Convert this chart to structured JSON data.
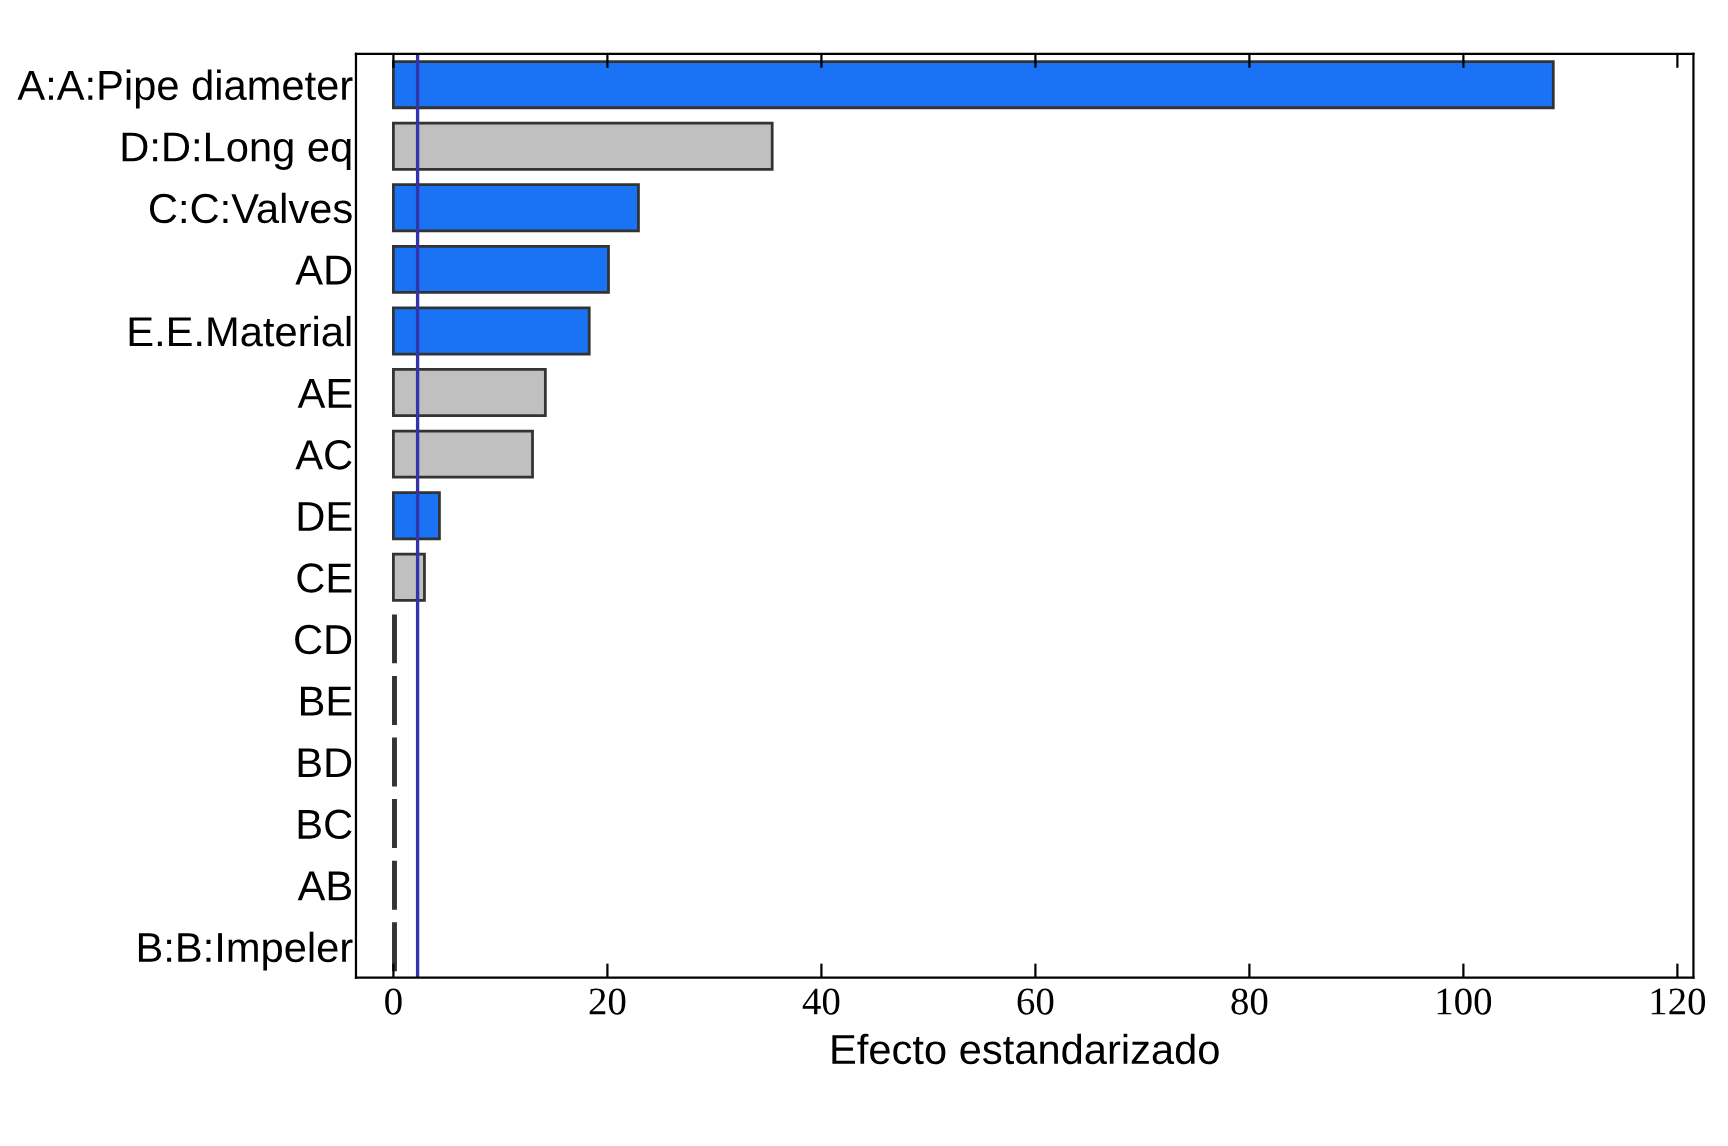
{
  "chart_data": {
    "type": "bar",
    "orientation": "horizontal",
    "xlabel": "Efecto estandarizado",
    "categories": [
      "A:A:Pipe diameter",
      "D:D:Long eq",
      "C:C:Valves",
      "AD",
      "E.E.Material",
      "AE",
      "AC",
      "DE",
      "CE",
      "CD",
      "BE",
      "BD",
      "BC",
      "AB",
      "B:B:Impeler"
    ],
    "values": [
      108.4,
      35.4,
      22.9,
      20.1,
      18.3,
      14.2,
      13.0,
      4.3,
      2.9,
      0.2,
      0.2,
      0.2,
      0.2,
      0.2,
      0.2
    ],
    "colors": [
      "#1a73f5",
      "#c0c0c0",
      "#1a73f5",
      "#1a73f5",
      "#1a73f5",
      "#c0c0c0",
      "#c0c0c0",
      "#1a73f5",
      "#c0c0c0",
      "#c0c0c0",
      "#c0c0c0",
      "#c0c0c0",
      "#c0c0c0",
      "#c0c0c0",
      "#c0c0c0"
    ],
    "xlim": [
      -3.5,
      121.5
    ],
    "xticks": [
      0,
      20,
      40,
      60,
      80,
      100,
      120
    ],
    "ref_lines": [
      {
        "axis": "x",
        "value": 2.26,
        "color": "#3333aa"
      }
    ],
    "grid": false
  }
}
